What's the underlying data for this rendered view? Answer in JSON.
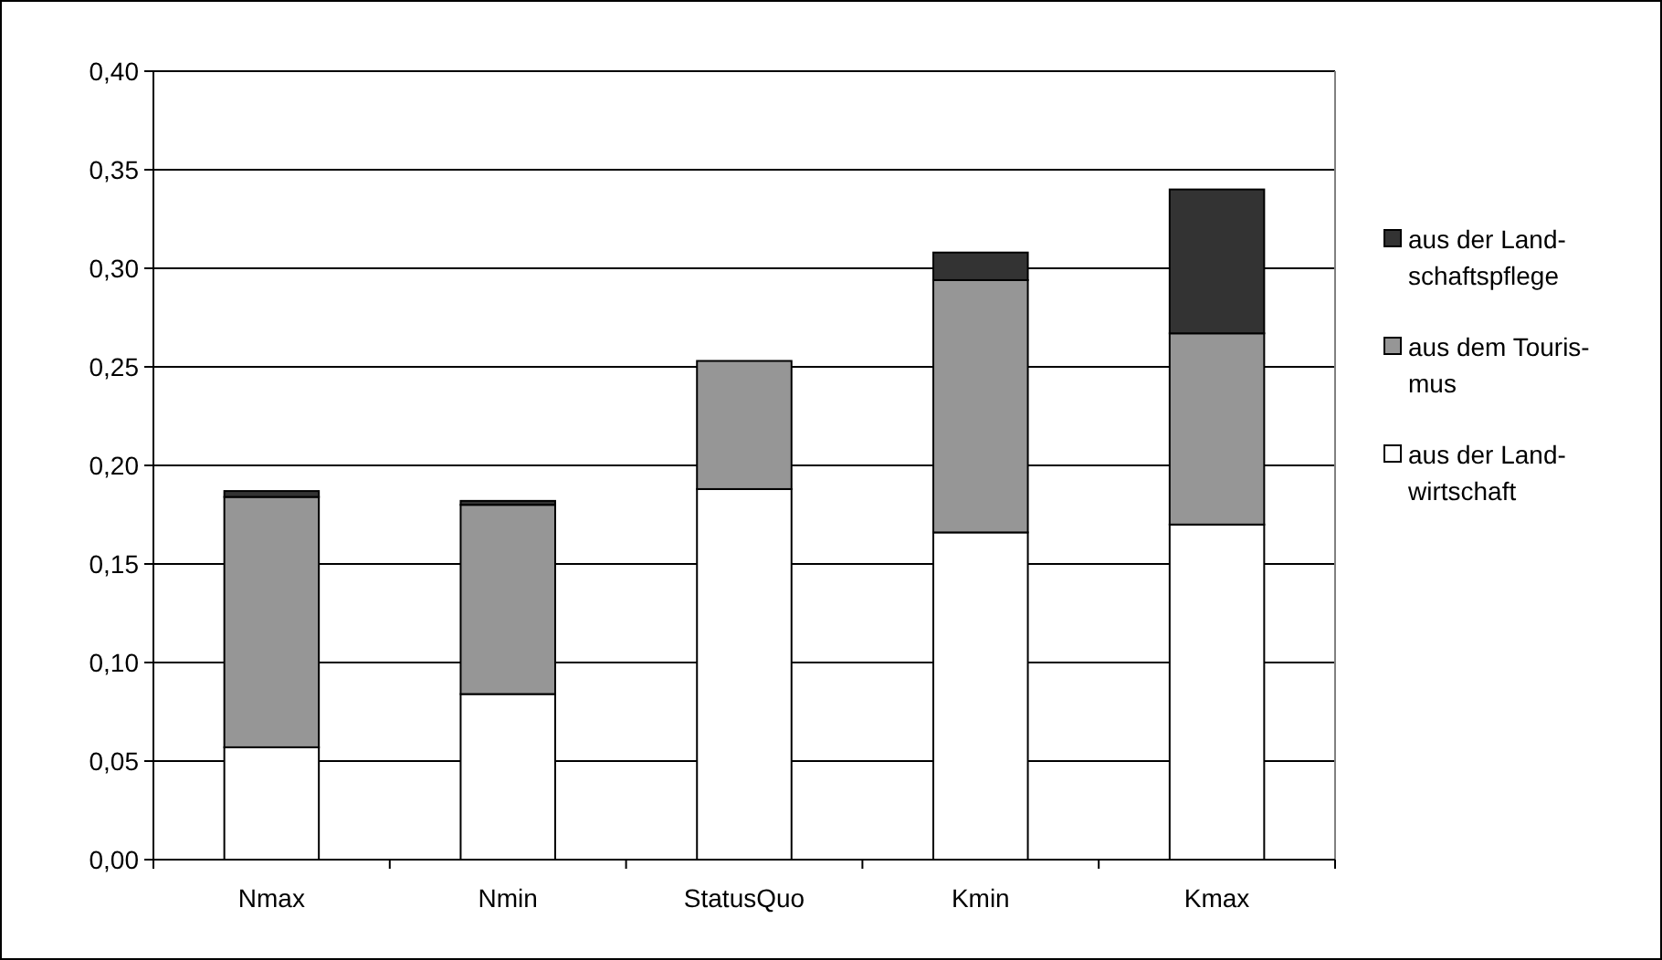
{
  "chart_data": {
    "type": "bar",
    "stacked": true,
    "categories": [
      "Nmax",
      "Nmin",
      "StatusQuo",
      "Kmin",
      "Kmax"
    ],
    "series": [
      {
        "name": "aus der Land-\nwirtschaft",
        "color": "#ffffff",
        "values": [
          0.057,
          0.084,
          0.188,
          0.166,
          0.17
        ]
      },
      {
        "name": "aus dem Touris-\nmus",
        "color": "#969696",
        "values": [
          0.127,
          0.096,
          0.065,
          0.128,
          0.097
        ]
      },
      {
        "name": "aus der Land-\nschaftspflege",
        "color": "#333333",
        "values": [
          0.003,
          0.002,
          0,
          0.014,
          0.073
        ]
      }
    ],
    "ylim": [
      0,
      0.4
    ],
    "yticks": [
      {
        "value": 0,
        "label": "0,00"
      },
      {
        "value": 0.05,
        "label": "0,05"
      },
      {
        "value": 0.1,
        "label": "0,10"
      },
      {
        "value": 0.15,
        "label": "0,15"
      },
      {
        "value": 0.2,
        "label": "0,20"
      },
      {
        "value": 0.25,
        "label": "0,25"
      },
      {
        "value": 0.3,
        "label": "0,30"
      },
      {
        "value": 0.35,
        "label": "0,35"
      },
      {
        "value": 0.4,
        "label": "0,40"
      }
    ],
    "grid": "y",
    "legend": "right"
  }
}
